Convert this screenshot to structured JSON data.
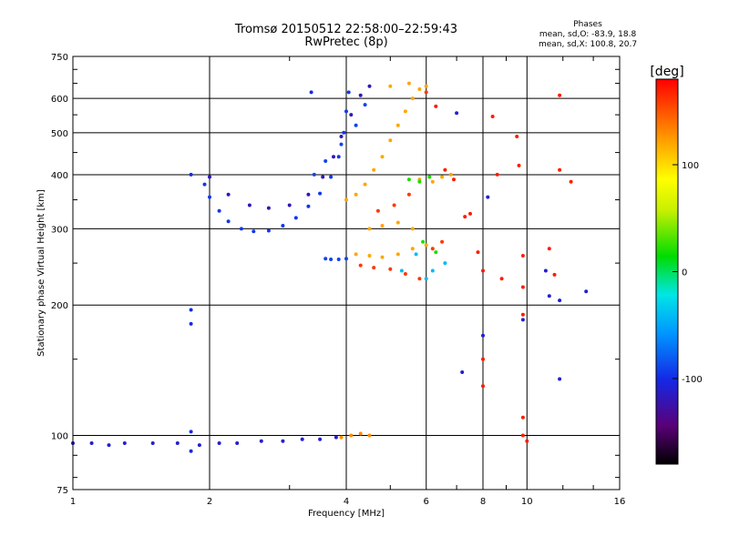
{
  "chart_data": {
    "type": "scatter",
    "title": "Tromsø 20150512 22:58:00–22:59:43",
    "subtitle": "RwPretec (8p)",
    "xlabel": "Frequency [MHz]",
    "ylabel": "Stationary phase Virtual Height [km]",
    "x_scale": "log",
    "y_scale": "log",
    "xlim": [
      1,
      16
    ],
    "ylim": [
      75,
      750
    ],
    "x_ticks": [
      "1",
      "2",
      "4",
      "6",
      "8",
      "10",
      "16"
    ],
    "y_ticks": [
      "75",
      "100",
      "200",
      "300",
      "400",
      "500",
      "600",
      "750"
    ],
    "x_grid": [
      1,
      2,
      4,
      6,
      8,
      10,
      16
    ],
    "y_grid": [
      100,
      200,
      300,
      400,
      500,
      600
    ],
    "grid": true,
    "phase_stats": {
      "header": "Phases",
      "line_o": "mean, sd,O: -83.9, 18.8",
      "line_x": "mean, sd,X: 100.8, 20.7"
    },
    "colorbar": {
      "label": "[deg]",
      "ticks": [
        "100",
        "0",
        "-100"
      ],
      "range": [
        -180,
        180
      ]
    },
    "series": [
      {
        "phase": -110,
        "points": [
          [
            1.0,
            96
          ],
          [
            1.1,
            96
          ],
          [
            1.2,
            95
          ],
          [
            1.3,
            96
          ],
          [
            1.5,
            96
          ],
          [
            1.7,
            96
          ],
          [
            1.9,
            95
          ],
          [
            2.1,
            96
          ],
          [
            2.3,
            96
          ],
          [
            2.6,
            97
          ],
          [
            2.9,
            97
          ],
          [
            3.2,
            98
          ],
          [
            3.5,
            98
          ],
          [
            3.8,
            99
          ]
        ]
      },
      {
        "phase": 130,
        "points": [
          [
            3.9,
            99
          ],
          [
            4.1,
            100
          ],
          [
            4.3,
            101
          ],
          [
            4.5,
            100
          ]
        ]
      },
      {
        "phase": -100,
        "points": [
          [
            1.82,
            400
          ],
          [
            1.82,
            195
          ],
          [
            1.82,
            181
          ],
          [
            1.82,
            102
          ],
          [
            1.82,
            92
          ],
          [
            3.35,
            620
          ]
        ]
      },
      {
        "phase": -95,
        "points": [
          [
            1.95,
            380
          ],
          [
            2.0,
            355
          ],
          [
            2.1,
            330
          ],
          [
            2.2,
            312
          ],
          [
            2.35,
            300
          ],
          [
            2.5,
            296
          ],
          [
            2.7,
            297
          ],
          [
            2.9,
            305
          ],
          [
            3.1,
            318
          ],
          [
            3.3,
            338
          ],
          [
            3.5,
            362
          ],
          [
            3.7,
            395
          ],
          [
            3.85,
            440
          ],
          [
            3.95,
            500
          ],
          [
            4.0,
            560
          ],
          [
            4.05,
            620
          ]
        ]
      },
      {
        "phase": -120,
        "points": [
          [
            2.0,
            395
          ],
          [
            2.2,
            360
          ],
          [
            2.45,
            340
          ],
          [
            2.7,
            335
          ],
          [
            3.0,
            340
          ],
          [
            3.3,
            360
          ],
          [
            3.55,
            395
          ],
          [
            3.75,
            440
          ],
          [
            3.9,
            490
          ],
          [
            4.1,
            550
          ],
          [
            4.3,
            610
          ],
          [
            4.5,
            640
          ]
        ]
      },
      {
        "phase": -90,
        "points": [
          [
            3.6,
            256
          ],
          [
            3.7,
            255
          ],
          [
            3.85,
            255
          ],
          [
            4.0,
            256
          ],
          [
            3.4,
            400
          ],
          [
            3.6,
            430
          ],
          [
            3.9,
            470
          ],
          [
            4.2,
            520
          ],
          [
            4.4,
            580
          ]
        ]
      },
      {
        "phase": 120,
        "points": [
          [
            4.0,
            350
          ],
          [
            4.2,
            360
          ],
          [
            4.4,
            380
          ],
          [
            4.6,
            410
          ],
          [
            4.8,
            440
          ],
          [
            5.0,
            480
          ],
          [
            5.2,
            520
          ],
          [
            5.4,
            560
          ],
          [
            5.6,
            600
          ],
          [
            5.8,
            630
          ],
          [
            4.2,
            262
          ],
          [
            4.5,
            260
          ],
          [
            4.8,
            258
          ],
          [
            5.2,
            262
          ],
          [
            5.6,
            270
          ],
          [
            6.0,
            275
          ],
          [
            4.5,
            300
          ],
          [
            4.8,
            305
          ],
          [
            5.2,
            310
          ],
          [
            5.6,
            300
          ],
          [
            5.8,
            390
          ],
          [
            6.2,
            385
          ],
          [
            6.5,
            395
          ],
          [
            6.8,
            400
          ],
          [
            5.0,
            640
          ],
          [
            5.5,
            650
          ],
          [
            6.0,
            640
          ]
        ]
      },
      {
        "phase": 160,
        "points": [
          [
            4.3,
            247
          ],
          [
            4.6,
            244
          ],
          [
            5.0,
            242
          ],
          [
            5.4,
            236
          ],
          [
            5.8,
            230
          ],
          [
            6.2,
            270
          ],
          [
            6.5,
            280
          ],
          [
            4.7,
            330
          ],
          [
            5.1,
            340
          ],
          [
            5.5,
            360
          ],
          [
            6.0,
            620
          ]
        ]
      },
      {
        "phase": 20,
        "points": [
          [
            5.5,
            390
          ],
          [
            5.8,
            385
          ],
          [
            6.1,
            395
          ],
          [
            5.9,
            280
          ],
          [
            6.3,
            265
          ]
        ]
      },
      {
        "phase": -40,
        "points": [
          [
            5.3,
            240
          ],
          [
            5.7,
            262
          ],
          [
            6.2,
            240
          ],
          [
            6.6,
            250
          ],
          [
            6.0,
            230
          ]
        ]
      },
      {
        "phase": 170,
        "points": [
          [
            6.3,
            575
          ],
          [
            6.6,
            410
          ],
          [
            6.9,
            390
          ],
          [
            7.3,
            320
          ],
          [
            7.8,
            265
          ],
          [
            8.0,
            240
          ],
          [
            8.0,
            150
          ],
          [
            8.0,
            130
          ],
          [
            8.6,
            400
          ],
          [
            8.8,
            230
          ],
          [
            9.5,
            490
          ],
          [
            9.6,
            420
          ],
          [
            9.8,
            260
          ],
          [
            9.8,
            220
          ],
          [
            9.8,
            190
          ],
          [
            9.8,
            110
          ],
          [
            9.8,
            100
          ],
          [
            10.0,
            97
          ],
          [
            11.2,
            270
          ],
          [
            11.5,
            235
          ],
          [
            11.8,
            610
          ],
          [
            11.8,
            410
          ],
          [
            12.5,
            385
          ],
          [
            7.5,
            325
          ],
          [
            8.4,
            545
          ]
        ]
      },
      {
        "phase": -110,
        "points": [
          [
            7.0,
            555
          ],
          [
            7.2,
            140
          ],
          [
            8.0,
            170
          ],
          [
            9.8,
            185
          ],
          [
            11.0,
            240
          ],
          [
            11.2,
            210
          ],
          [
            11.8,
            205
          ],
          [
            11.8,
            135
          ],
          [
            13.5,
            215
          ],
          [
            8.2,
            355
          ]
        ]
      }
    ]
  }
}
